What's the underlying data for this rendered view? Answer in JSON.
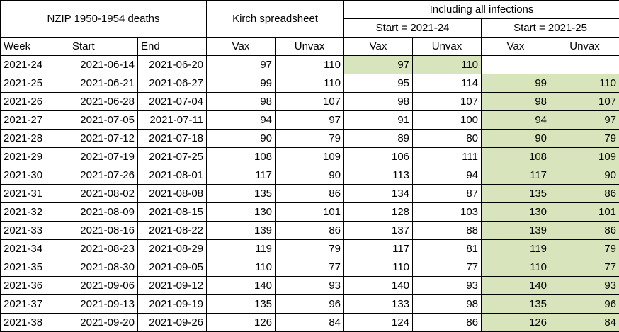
{
  "header": {
    "group_nzip": "NZIP 1950-1954 deaths",
    "group_kirch": "Kirch spreadsheet",
    "group_all": "Including all infections",
    "sub_start_a": "Start =  2021-24",
    "sub_start_b": "Start =  2021-25",
    "col_week": "Week",
    "col_start": "Start",
    "col_end": "End",
    "col_vax": "Vax",
    "col_unvax": "Unvax"
  },
  "colors": {
    "highlight": "#d8e4bc",
    "border": "#000000"
  },
  "rows": [
    {
      "week": "2021-24",
      "start": "2021-06-14",
      "end": "2021-06-20",
      "kirch_vax": "97",
      "kirch_unvax": "110",
      "a_vax": "97",
      "a_unvax": "110",
      "b_vax": "",
      "b_unvax": ""
    },
    {
      "week": "2021-25",
      "start": "2021-06-21",
      "end": "2021-06-27",
      "kirch_vax": "99",
      "kirch_unvax": "110",
      "a_vax": "95",
      "a_unvax": "114",
      "b_vax": "99",
      "b_unvax": "110"
    },
    {
      "week": "2021-26",
      "start": "2021-06-28",
      "end": "2021-07-04",
      "kirch_vax": "98",
      "kirch_unvax": "107",
      "a_vax": "98",
      "a_unvax": "107",
      "b_vax": "98",
      "b_unvax": "107"
    },
    {
      "week": "2021-27",
      "start": "2021-07-05",
      "end": "2021-07-11",
      "kirch_vax": "94",
      "kirch_unvax": "97",
      "a_vax": "91",
      "a_unvax": "100",
      "b_vax": "94",
      "b_unvax": "97"
    },
    {
      "week": "2021-28",
      "start": "2021-07-12",
      "end": "2021-07-18",
      "kirch_vax": "90",
      "kirch_unvax": "79",
      "a_vax": "89",
      "a_unvax": "80",
      "b_vax": "90",
      "b_unvax": "79"
    },
    {
      "week": "2021-29",
      "start": "2021-07-19",
      "end": "2021-07-25",
      "kirch_vax": "108",
      "kirch_unvax": "109",
      "a_vax": "106",
      "a_unvax": "111",
      "b_vax": "108",
      "b_unvax": "109"
    },
    {
      "week": "2021-30",
      "start": "2021-07-26",
      "end": "2021-08-01",
      "kirch_vax": "117",
      "kirch_unvax": "90",
      "a_vax": "113",
      "a_unvax": "94",
      "b_vax": "117",
      "b_unvax": "90"
    },
    {
      "week": "2021-31",
      "start": "2021-08-02",
      "end": "2021-08-08",
      "kirch_vax": "135",
      "kirch_unvax": "86",
      "a_vax": "134",
      "a_unvax": "87",
      "b_vax": "135",
      "b_unvax": "86"
    },
    {
      "week": "2021-32",
      "start": "2021-08-09",
      "end": "2021-08-15",
      "kirch_vax": "130",
      "kirch_unvax": "101",
      "a_vax": "128",
      "a_unvax": "103",
      "b_vax": "130",
      "b_unvax": "101"
    },
    {
      "week": "2021-33",
      "start": "2021-08-16",
      "end": "2021-08-22",
      "kirch_vax": "139",
      "kirch_unvax": "86",
      "a_vax": "137",
      "a_unvax": "88",
      "b_vax": "139",
      "b_unvax": "86"
    },
    {
      "week": "2021-34",
      "start": "2021-08-23",
      "end": "2021-08-29",
      "kirch_vax": "119",
      "kirch_unvax": "79",
      "a_vax": "117",
      "a_unvax": "81",
      "b_vax": "119",
      "b_unvax": "79"
    },
    {
      "week": "2021-35",
      "start": "2021-08-30",
      "end": "2021-09-05",
      "kirch_vax": "110",
      "kirch_unvax": "77",
      "a_vax": "110",
      "a_unvax": "77",
      "b_vax": "110",
      "b_unvax": "77"
    },
    {
      "week": "2021-36",
      "start": "2021-09-06",
      "end": "2021-09-12",
      "kirch_vax": "140",
      "kirch_unvax": "93",
      "a_vax": "140",
      "a_unvax": "93",
      "b_vax": "140",
      "b_unvax": "93"
    },
    {
      "week": "2021-37",
      "start": "2021-09-13",
      "end": "2021-09-19",
      "kirch_vax": "135",
      "kirch_unvax": "96",
      "a_vax": "133",
      "a_unvax": "98",
      "b_vax": "135",
      "b_unvax": "96"
    },
    {
      "week": "2021-38",
      "start": "2021-09-20",
      "end": "2021-09-26",
      "kirch_vax": "126",
      "kirch_unvax": "84",
      "a_vax": "124",
      "a_unvax": "86",
      "b_vax": "126",
      "b_unvax": "84"
    }
  ]
}
